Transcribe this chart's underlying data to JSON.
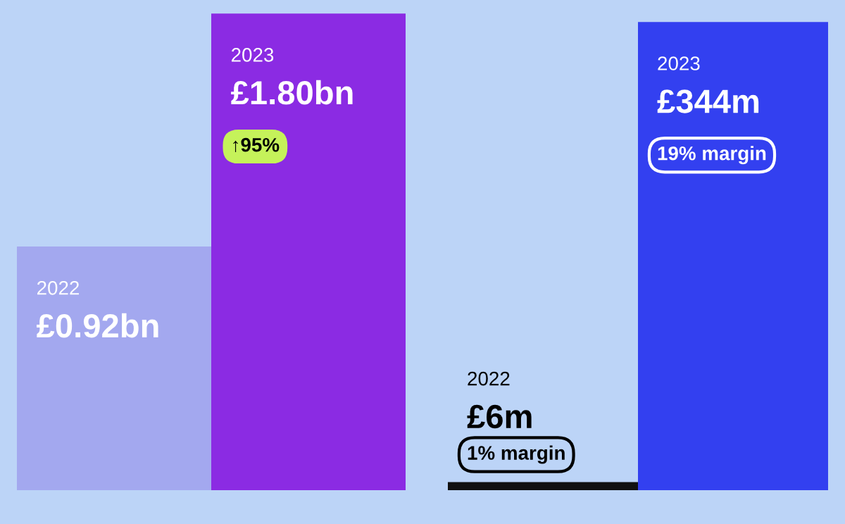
{
  "chart_data": [
    {
      "type": "bar",
      "categories": [
        "2022",
        "2023"
      ],
      "values": [
        0.92,
        1.8
      ],
      "value_labels": [
        "£0.92bn",
        "£1.80bn"
      ],
      "colors": [
        "#a3a8ef",
        "#8b2be3"
      ],
      "ylim": [
        0,
        1.85
      ],
      "annotations": [
        "↑95%"
      ]
    },
    {
      "type": "bar",
      "categories": [
        "2022",
        "2023"
      ],
      "values": [
        6,
        344
      ],
      "value_labels": [
        "£6m",
        "£344m"
      ],
      "colors": [
        "#111111",
        "#3340f0"
      ],
      "ylim": [
        0,
        360
      ],
      "annotations": [
        "1% margin",
        "19% margin"
      ]
    }
  ]
}
